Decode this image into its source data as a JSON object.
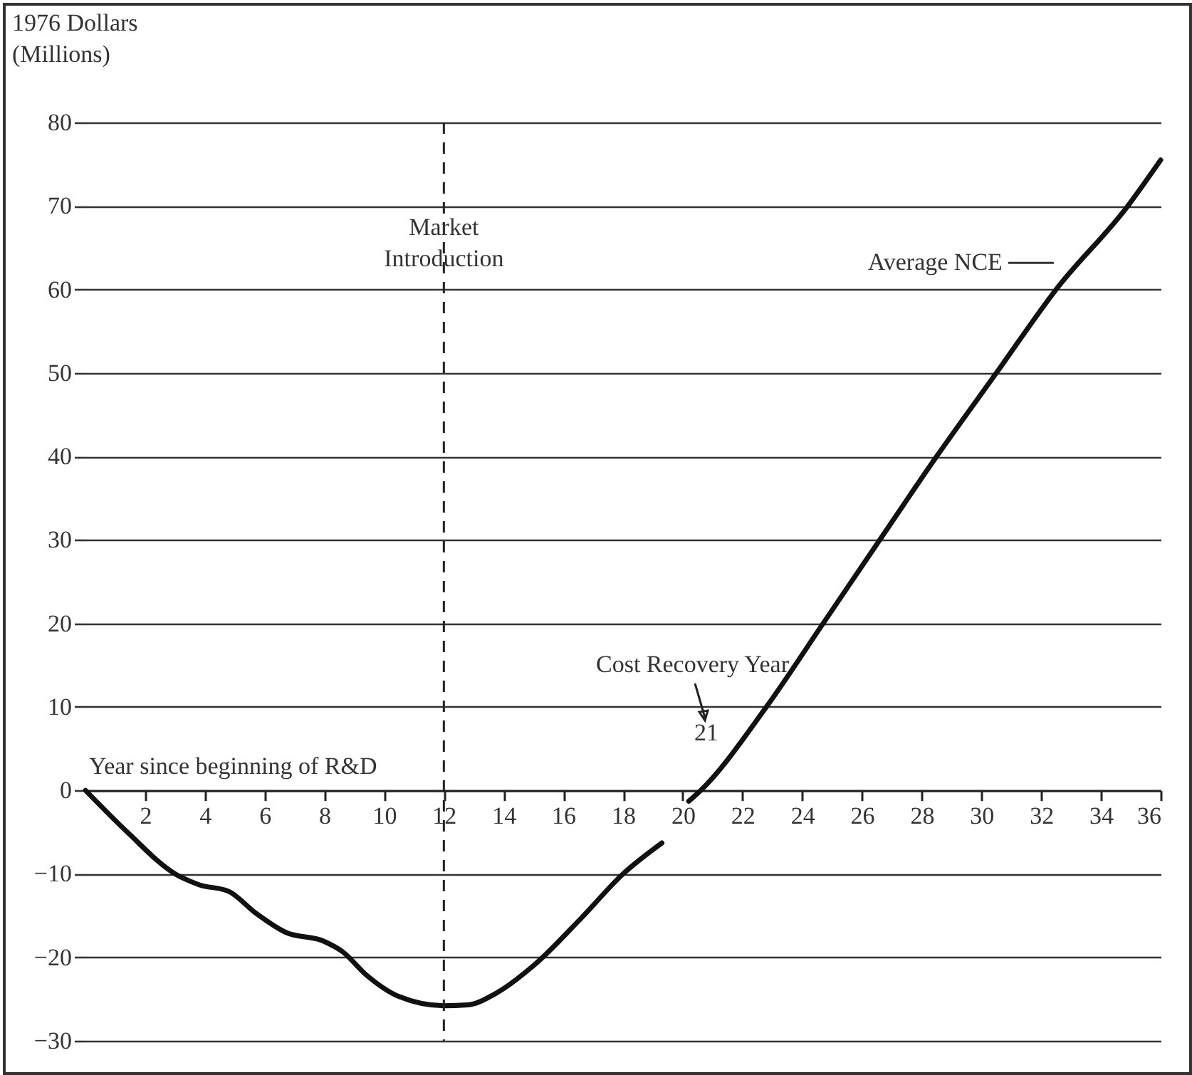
{
  "chart_data": {
    "type": "line",
    "ylabel": "1976 Dollars (Millions)",
    "xlabel": "Year since beginning of R&D",
    "x": [
      0,
      1.4,
      3,
      3.8,
      4.8,
      5.7,
      6.7,
      8,
      8.6,
      9.4,
      10.5,
      12,
      12.8,
      13.7,
      15,
      16.6,
      18,
      19.3,
      19.7,
      20.2,
      20.6,
      22.8,
      24.7,
      26.5,
      28.5,
      30.5,
      32.5,
      34.9,
      36
    ],
    "series": [
      {
        "name": "Average NCE",
        "color": "#111111",
        "values": [
          0,
          -5,
          -10,
          -11.3,
          -12.1,
          -14.7,
          -17,
          -18.1,
          -19.3,
          -22.1,
          -24.7,
          -25.8,
          -25.7,
          -24.4,
          -21,
          -15.3,
          -10,
          -6.3,
          null,
          -1.3,
          0,
          10,
          20,
          29.5,
          40,
          50,
          60,
          70,
          75.5
        ]
      }
    ],
    "xlim": [
      0,
      36
    ],
    "xticks": [
      2,
      4,
      6,
      8,
      10,
      12,
      14,
      16,
      18,
      20,
      22,
      24,
      26,
      28,
      30,
      32,
      34,
      36
    ],
    "ylim": [
      -30,
      80
    ],
    "yticks": [
      -30,
      -20,
      -10,
      0,
      10,
      20,
      30,
      40,
      50,
      60,
      70,
      80
    ],
    "grid": "y",
    "line_style": "solid",
    "ref_lines": [
      {
        "axis": "x",
        "value": 12,
        "label": "Market Introduction",
        "line_style": "dashed",
        "color": "#222222"
      }
    ],
    "annotations": [
      "Cost Recovery Year",
      "21"
    ]
  }
}
